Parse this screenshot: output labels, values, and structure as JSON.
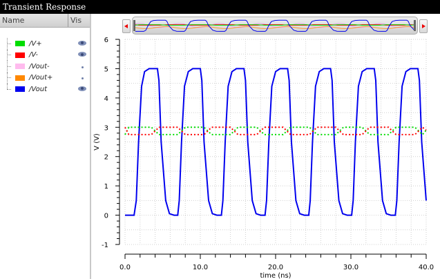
{
  "window": {
    "title": "Transient Response"
  },
  "sidebar": {
    "header": {
      "name": "Name",
      "vis": "Vis"
    },
    "items": [
      {
        "label": "/V+",
        "color": "#00dd00",
        "visibility": "eye"
      },
      {
        "label": "/V-",
        "color": "#ff0000",
        "visibility": "eye"
      },
      {
        "label": "/Vout-",
        "color": "#ffbbee",
        "visibility": "dot"
      },
      {
        "label": "/Vout+",
        "color": "#ff8800",
        "visibility": "dot"
      },
      {
        "label": "/Vout",
        "color": "#0000ee",
        "visibility": "eye"
      }
    ]
  },
  "scroller": {
    "left_arrow": "◂",
    "right_arrow": "▸"
  },
  "chart_data": {
    "type": "line",
    "title": "Transient Response",
    "xlabel": "time (ns)",
    "ylabel": "V (V)",
    "xlim": [
      0,
      40
    ],
    "ylim": [
      -1,
      6
    ],
    "x_ticks": [
      "0.0",
      "10.0",
      "20.0",
      "30.0",
      "40.0"
    ],
    "y_ticks": [
      "-1",
      "0",
      "1",
      "2",
      "3",
      "4",
      "5",
      "6"
    ],
    "grid": true,
    "legend_position": "left-panel",
    "series": [
      {
        "name": "/Vout",
        "color": "#0000ee",
        "style": "solid",
        "x": [
          0,
          1.2,
          1.5,
          1.8,
          2.2,
          2.6,
          3.2,
          4.3,
          4.5,
          4.8,
          5.4,
          5.9,
          6.5,
          7.0,
          7.2,
          7.5,
          7.9,
          8.4,
          9.0,
          10.0,
          10.2,
          10.5,
          11.1,
          11.6,
          12.2,
          12.8,
          13.0,
          13.3,
          13.7,
          14.2,
          14.8,
          15.8,
          16.0,
          16.3,
          16.9,
          17.4,
          18.0,
          18.6,
          18.8,
          19.1,
          19.5,
          20.0,
          20.6,
          21.6,
          21.8,
          22.1,
          22.7,
          23.2,
          23.8,
          24.4,
          24.6,
          24.9,
          25.3,
          25.8,
          26.4,
          27.3,
          27.5,
          27.8,
          28.4,
          28.9,
          29.5,
          30.1,
          30.3,
          30.6,
          31.0,
          31.5,
          32.1,
          33.1,
          33.3,
          33.6,
          34.2,
          34.7,
          35.3,
          35.9,
          36.1,
          36.4,
          36.8,
          37.3,
          37.9,
          38.9,
          39.1,
          39.4,
          40.0
        ],
        "values": [
          0,
          0,
          0.5,
          2.5,
          4.4,
          4.9,
          5.0,
          5.0,
          4.6,
          2.5,
          0.5,
          0.05,
          0,
          0,
          0.5,
          2.5,
          4.4,
          4.9,
          5.0,
          5.0,
          4.6,
          2.5,
          0.5,
          0.05,
          0,
          0,
          0.5,
          2.5,
          4.4,
          4.9,
          5.0,
          5.0,
          4.6,
          2.5,
          0.5,
          0.05,
          0,
          0,
          0.5,
          2.5,
          4.4,
          4.9,
          5.0,
          5.0,
          4.6,
          2.5,
          0.5,
          0.05,
          0,
          0,
          0.5,
          2.5,
          4.4,
          4.9,
          5.0,
          5.0,
          4.6,
          2.5,
          0.5,
          0.05,
          0,
          0,
          0.5,
          2.5,
          4.4,
          4.9,
          5.0,
          5.0,
          4.6,
          2.5,
          0.5,
          0.05,
          0,
          0,
          0.5,
          2.5,
          4.4,
          4.9,
          5.0,
          5.0,
          4.6,
          2.5,
          0.5
        ]
      },
      {
        "name": "/V+",
        "color": "#00dd00",
        "style": "dotted",
        "description": "Differential input centered at ~2.9 V, toggling between ~2.75 V and ~3.0 V",
        "x": [
          0,
          0.5,
          3.5,
          4.5,
          7.0,
          8.0,
          10.5,
          11.5,
          14.0,
          15.0,
          17.5,
          18.5,
          21.0,
          22.0,
          24.5,
          25.5,
          28.0,
          29.0,
          31.5,
          32.5,
          35.0,
          36.0,
          38.5,
          39.5,
          40.0
        ],
        "values": [
          2.75,
          3.0,
          3.0,
          2.75,
          2.75,
          3.0,
          3.0,
          2.75,
          2.75,
          3.0,
          3.0,
          2.75,
          2.75,
          3.0,
          3.0,
          2.75,
          2.75,
          3.0,
          3.0,
          2.75,
          2.75,
          3.0,
          3.0,
          2.75,
          2.9
        ]
      },
      {
        "name": "/V-",
        "color": "#ff0000",
        "style": "dotted",
        "x": [
          0,
          0.5,
          3.5,
          4.5,
          7.0,
          8.0,
          10.5,
          11.5,
          14.0,
          15.0,
          17.5,
          18.5,
          21.0,
          22.0,
          24.5,
          25.5,
          28.0,
          29.0,
          31.5,
          32.5,
          35.0,
          36.0,
          38.5,
          39.5,
          40.0
        ],
        "values": [
          3.0,
          2.75,
          2.75,
          3.0,
          3.0,
          2.75,
          2.75,
          3.0,
          3.0,
          2.75,
          2.75,
          3.0,
          3.0,
          2.75,
          2.75,
          3.0,
          3.0,
          2.75,
          2.75,
          3.0,
          3.0,
          2.75,
          2.75,
          3.0,
          2.9
        ]
      }
    ],
    "hidden_series": [
      "/Vout-",
      "/Vout+"
    ]
  }
}
